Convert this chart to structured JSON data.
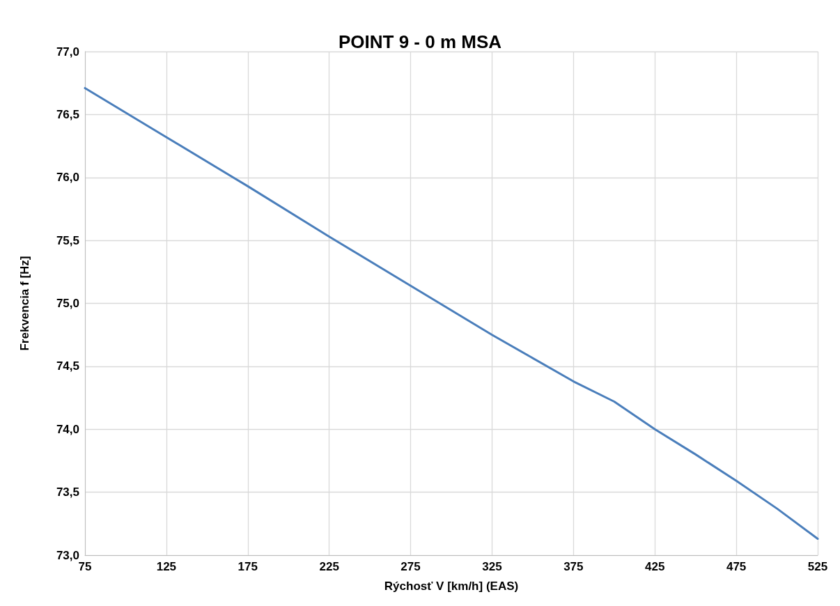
{
  "chart_data": {
    "type": "line",
    "title": "POINT 9 - 0 m MSA",
    "xlabel": "Rýchosť V [km/h] (EAS)",
    "ylabel": "Frekvencia f [Hz]",
    "x": [
      75,
      125,
      175,
      225,
      275,
      325,
      375,
      400,
      425,
      450,
      475,
      500,
      525
    ],
    "series": [
      {
        "color": "#4a7ebb",
        "values": [
          76.71,
          76.32,
          75.93,
          75.53,
          75.14,
          74.75,
          74.38,
          74.22,
          74.0,
          73.8,
          73.59,
          73.37,
          73.13
        ]
      }
    ],
    "xlim": [
      75,
      525
    ],
    "xticks": [
      75,
      125,
      175,
      225,
      275,
      325,
      375,
      425,
      475,
      525
    ],
    "ylim": [
      73,
      77
    ],
    "yticks": [
      {
        "value": 73,
        "label": "73,0"
      },
      {
        "value": 73.5,
        "label": "73,5"
      },
      {
        "value": 74,
        "label": "74,0"
      },
      {
        "value": 74.5,
        "label": "74,5"
      },
      {
        "value": 75,
        "label": "75,0"
      },
      {
        "value": 75.5,
        "label": "75,5"
      },
      {
        "value": 76,
        "label": "76,0"
      },
      {
        "value": 76.5,
        "label": "76,5"
      },
      {
        "value": 77,
        "label": "77,0"
      }
    ],
    "grid": true,
    "marker": "none",
    "line_style": "solid",
    "legend": false
  }
}
